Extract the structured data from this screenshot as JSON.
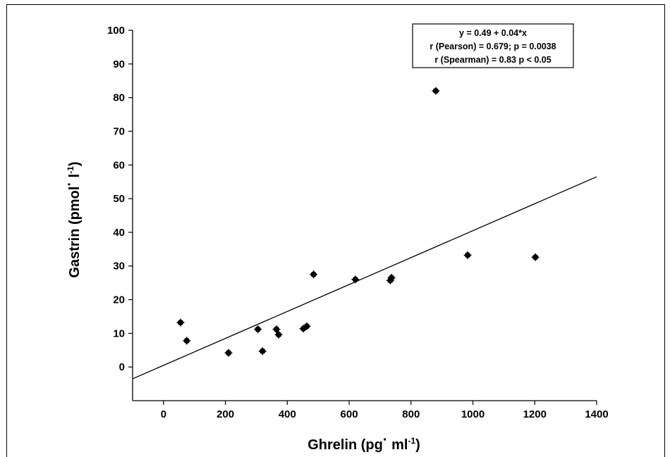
{
  "chart_data": {
    "type": "scatter",
    "xlim": [
      -100,
      1400
    ],
    "ylim": [
      -10,
      100
    ],
    "xticks": [
      0,
      200,
      400,
      600,
      800,
      1000,
      1200,
      1400
    ],
    "yticks": [
      0,
      10,
      20,
      30,
      40,
      50,
      60,
      70,
      80,
      90,
      100
    ],
    "xlabel": {
      "main": "Ghrelin (pg",
      "dot": "·",
      "unit": " ml",
      "exp": "-1",
      "close": ")"
    },
    "ylabel": {
      "main": "Gastrin (pmol",
      "dot": "·",
      "unit": " l",
      "exp": "-1",
      "close": ")"
    },
    "grid": false,
    "points": [
      {
        "x": 55,
        "y": 13.2
      },
      {
        "x": 75,
        "y": 7.8
      },
      {
        "x": 210,
        "y": 4.2
      },
      {
        "x": 305,
        "y": 11.2
      },
      {
        "x": 320,
        "y": 4.7
      },
      {
        "x": 365,
        "y": 11.2
      },
      {
        "x": 372,
        "y": 9.6
      },
      {
        "x": 452,
        "y": 11.4
      },
      {
        "x": 463,
        "y": 12.1
      },
      {
        "x": 485,
        "y": 27.5
      },
      {
        "x": 620,
        "y": 26
      },
      {
        "x": 733,
        "y": 25.7
      },
      {
        "x": 737,
        "y": 26.5
      },
      {
        "x": 880,
        "y": 82
      },
      {
        "x": 983,
        "y": 33.2
      },
      {
        "x": 1202,
        "y": 32.6
      }
    ],
    "regression": {
      "intercept": 0.49,
      "slope": 0.04,
      "x_range": [
        -100,
        1400
      ]
    },
    "annotation": {
      "lines": [
        "y = 0.49 + 0.04*x",
        "r (Pearson)  = 0.679; p = 0.0038",
        "r (Spearman) = 0.83 p < 0.05"
      ],
      "placement": "top-right"
    }
  }
}
